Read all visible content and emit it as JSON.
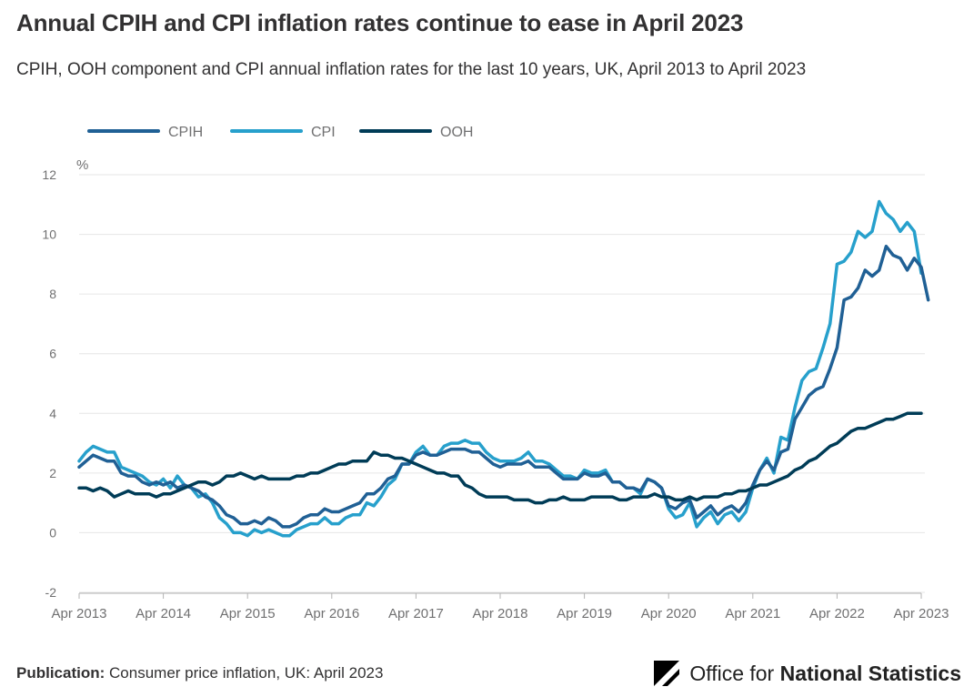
{
  "title": "Annual CPIH and CPI inflation rates continue to ease in April 2023",
  "subtitle": "CPIH, OOH component and CPI annual inflation rates for the last 10 years, UK, April 2013 to April 2023",
  "footer": {
    "label": "Publication:",
    "text": "Consumer price inflation, UK: April 2023"
  },
  "logo": {
    "org_prefix": "Office for ",
    "org_bold": "National Statistics",
    "icon": "ons-logo-icon"
  },
  "chart_data": {
    "type": "line",
    "ylabel": "%",
    "ylim": [
      -2,
      12
    ],
    "yticks": [
      -2,
      0,
      2,
      4,
      6,
      8,
      10,
      12
    ],
    "xlabels": [
      "Apr 2013",
      "Apr 2014",
      "Apr 2015",
      "Apr 2016",
      "Apr 2017",
      "Apr 2018",
      "Apr 2019",
      "Apr 2020",
      "Apr 2021",
      "Apr 2022",
      "Apr 2023"
    ],
    "legend_position": "top-left",
    "grid": true,
    "x_start": "Apr 2013",
    "x_end": "Apr 2023",
    "series": [
      {
        "name": "CPIH",
        "color": "#206095",
        "values": [
          2.2,
          2.4,
          2.6,
          2.5,
          2.4,
          2.4,
          2.0,
          1.9,
          1.9,
          1.7,
          1.6,
          1.7,
          1.6,
          1.7,
          1.5,
          1.6,
          1.5,
          1.4,
          1.2,
          1.1,
          0.9,
          0.6,
          0.5,
          0.3,
          0.3,
          0.4,
          0.3,
          0.5,
          0.4,
          0.2,
          0.2,
          0.3,
          0.5,
          0.6,
          0.6,
          0.8,
          0.7,
          0.7,
          0.8,
          0.9,
          1.0,
          1.3,
          1.3,
          1.5,
          1.8,
          1.9,
          2.3,
          2.3,
          2.6,
          2.7,
          2.6,
          2.6,
          2.7,
          2.8,
          2.8,
          2.8,
          2.7,
          2.7,
          2.5,
          2.3,
          2.2,
          2.3,
          2.3,
          2.3,
          2.4,
          2.2,
          2.2,
          2.2,
          2.0,
          1.8,
          1.8,
          1.8,
          2.0,
          1.9,
          1.9,
          2.0,
          1.7,
          1.7,
          1.5,
          1.5,
          1.4,
          1.8,
          1.7,
          1.5,
          0.9,
          0.8,
          1.0,
          1.1,
          0.5,
          0.7,
          0.9,
          0.6,
          0.8,
          0.9,
          0.7,
          1.0,
          1.6,
          2.1,
          2.4,
          2.1,
          2.7,
          2.8,
          3.8,
          4.2,
          4.6,
          4.8,
          4.9,
          5.5,
          6.2,
          7.8,
          7.9,
          8.2,
          8.8,
          8.6,
          8.8,
          9.6,
          9.3,
          9.2,
          8.8,
          9.2,
          8.9,
          7.8
        ]
      },
      {
        "name": "CPI",
        "color": "#27a0cc",
        "values": [
          2.4,
          2.7,
          2.9,
          2.8,
          2.7,
          2.7,
          2.2,
          2.1,
          2.0,
          1.9,
          1.7,
          1.6,
          1.8,
          1.5,
          1.9,
          1.6,
          1.5,
          1.2,
          1.3,
          1.0,
          0.5,
          0.3,
          0.0,
          0.0,
          -0.1,
          0.1,
          0.0,
          0.1,
          0.0,
          -0.1,
          -0.1,
          0.1,
          0.2,
          0.3,
          0.3,
          0.5,
          0.3,
          0.3,
          0.5,
          0.6,
          0.6,
          1.0,
          0.9,
          1.2,
          1.6,
          1.8,
          2.3,
          2.3,
          2.7,
          2.9,
          2.6,
          2.6,
          2.9,
          3.0,
          3.0,
          3.1,
          3.0,
          3.0,
          2.7,
          2.5,
          2.4,
          2.4,
          2.4,
          2.5,
          2.7,
          2.4,
          2.4,
          2.3,
          2.1,
          1.9,
          1.9,
          1.8,
          2.1,
          2.0,
          2.0,
          2.1,
          1.7,
          1.7,
          1.5,
          1.5,
          1.3,
          1.8,
          1.7,
          1.5,
          0.8,
          0.5,
          0.6,
          1.0,
          0.2,
          0.5,
          0.7,
          0.3,
          0.6,
          0.7,
          0.4,
          0.7,
          1.5,
          2.1,
          2.5,
          2.0,
          3.2,
          3.1,
          4.2,
          5.1,
          5.4,
          5.5,
          6.2,
          7.0,
          9.0,
          9.1,
          9.4,
          10.1,
          9.9,
          10.1,
          11.1,
          10.7,
          10.5,
          10.1,
          10.4,
          10.1,
          8.7
        ]
      },
      {
        "name": "OOH",
        "color": "#003c57",
        "values": [
          1.5,
          1.5,
          1.4,
          1.5,
          1.4,
          1.2,
          1.3,
          1.4,
          1.3,
          1.3,
          1.3,
          1.2,
          1.3,
          1.3,
          1.4,
          1.5,
          1.6,
          1.7,
          1.7,
          1.6,
          1.7,
          1.9,
          1.9,
          2.0,
          1.9,
          1.8,
          1.9,
          1.8,
          1.8,
          1.8,
          1.8,
          1.9,
          1.9,
          2.0,
          2.0,
          2.1,
          2.2,
          2.3,
          2.3,
          2.4,
          2.4,
          2.4,
          2.7,
          2.6,
          2.6,
          2.5,
          2.5,
          2.4,
          2.3,
          2.2,
          2.1,
          2.0,
          2.0,
          1.9,
          1.9,
          1.6,
          1.5,
          1.3,
          1.2,
          1.2,
          1.2,
          1.2,
          1.1,
          1.1,
          1.1,
          1.0,
          1.0,
          1.1,
          1.1,
          1.2,
          1.1,
          1.1,
          1.1,
          1.2,
          1.2,
          1.2,
          1.2,
          1.1,
          1.1,
          1.2,
          1.2,
          1.2,
          1.3,
          1.2,
          1.2,
          1.1,
          1.1,
          1.2,
          1.1,
          1.2,
          1.2,
          1.2,
          1.3,
          1.3,
          1.4,
          1.4,
          1.5,
          1.6,
          1.6,
          1.7,
          1.8,
          1.9,
          2.1,
          2.2,
          2.4,
          2.5,
          2.7,
          2.9,
          3.0,
          3.2,
          3.4,
          3.5,
          3.5,
          3.6,
          3.7,
          3.8,
          3.8,
          3.9,
          4.0,
          4.0,
          4.0
        ]
      }
    ]
  }
}
